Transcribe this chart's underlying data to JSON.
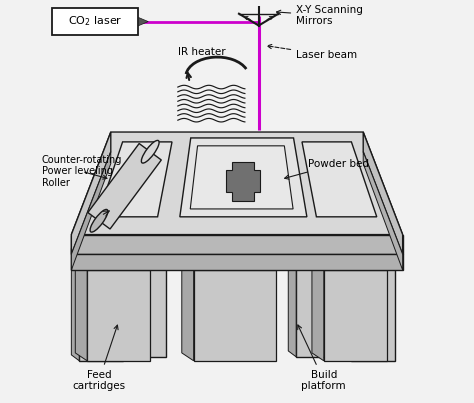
{
  "bg_color": "#f0f0f0",
  "line_color": "#1a1a1a",
  "laser_color": "#cc00cc",
  "table_top_fill": "#d8d8d8",
  "table_side_fill": "#b8b8b8",
  "table_rim_fill": "#c0c0c0",
  "powder_fill": "#e8e8e8",
  "build_part_fill": "#707070",
  "roller_fill": "#c8c8c8",
  "white_fill": "#ffffff",
  "leg_fill": "#c8c8c8",
  "leg_side_fill": "#a8a8a8",
  "labels": {
    "co2_laser": "CO$_2$ laser",
    "xy_mirrors": "X-Y Scanning\nMirrors",
    "laser_beam": "Laser beam",
    "ir_heater": "IR heater",
    "powder_bed": "Powder bed",
    "counter_rotating": "Counter-rotating\nPower leveling\nRoller",
    "feed_cartridges": "Feed\ncartridges",
    "build_platform": "Build\nplatform"
  },
  "figsize": [
    4.74,
    4.03
  ],
  "dpi": 100
}
